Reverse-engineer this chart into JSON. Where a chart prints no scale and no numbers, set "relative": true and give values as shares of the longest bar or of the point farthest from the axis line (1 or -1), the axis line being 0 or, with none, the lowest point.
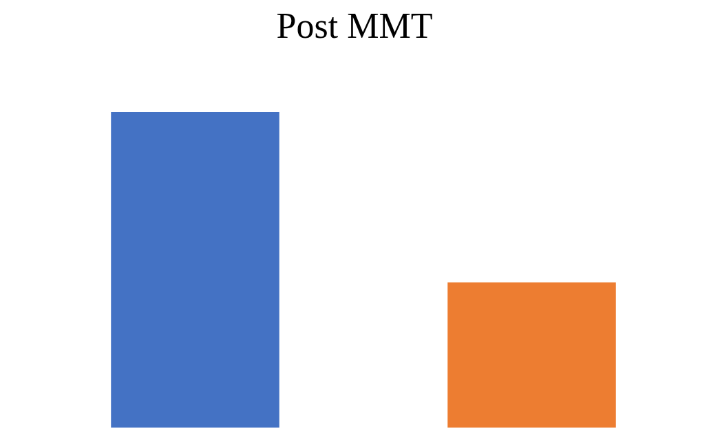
{
  "chart_data": {
    "type": "bar",
    "title": "Post MMT",
    "relative": true,
    "categories": [
      null,
      null
    ],
    "values": [
      1,
      0.46
    ],
    "colors": [
      "#4472c4",
      "#ed7d31"
    ]
  }
}
